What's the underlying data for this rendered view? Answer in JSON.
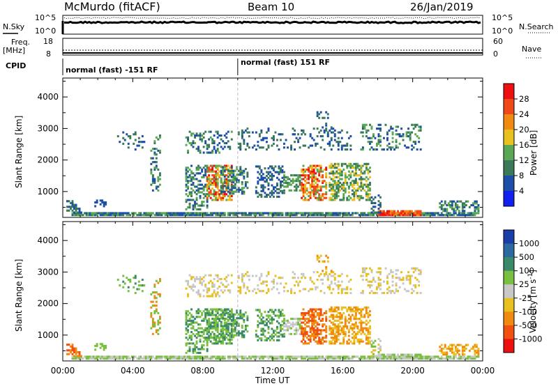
{
  "header": {
    "station": "McMurdo (fitACF)",
    "beam": "Beam 10",
    "date": "26/Jan/2019"
  },
  "top_panels": {
    "nsky_label": "N.Sky",
    "nsky_ticks": [
      "10^5",
      "10^0"
    ],
    "nsearch_label": "N.Search",
    "nsearch_ticks": [
      "10^5",
      "10^0"
    ],
    "freq_label_1": "Freq.",
    "freq_label_2": "[MHz]",
    "freq_ticks": [
      "18",
      "8"
    ],
    "nave_label": "Nave",
    "nave_ticks": [
      "60",
      "0"
    ],
    "cpid_label": "CPID",
    "cpid_segments": [
      {
        "label": "normal (fast) -151 RF",
        "start": 0,
        "end": 10
      },
      {
        "label": "normal (fast) 151 RF",
        "start": 10,
        "end": 24
      }
    ]
  },
  "colors": {
    "power": [
      "#1020ee",
      "#1e4fa8",
      "#3a7a5a",
      "#5aa855",
      "#e8c020",
      "#f08a10",
      "#f04818",
      "#ee1010"
    ],
    "velocity": [
      "#1a3ea8",
      "#2a6aa0",
      "#3a8a6a",
      "#7ac040",
      "#c8c8c8",
      "#e8c020",
      "#f08a10",
      "#f05010",
      "#ee1010"
    ]
  },
  "chart_data": [
    {
      "type": "heatmap",
      "title": "",
      "xlabel": "Time UT",
      "ylabel": "Slant Range [km]",
      "x_ticks": [
        "00:00",
        "04:00",
        "08:00",
        "12:00",
        "16:00",
        "20:00",
        "00:00"
      ],
      "y_ticks": [
        "1000",
        "2000",
        "3000",
        "4000"
      ],
      "ylim": [
        180,
        4600
      ],
      "xlim_hours": [
        0,
        24
      ],
      "colorbar_label": "Power [dB]",
      "colorbar_ticks": [
        "4",
        "8",
        "12",
        "16",
        "20",
        "24",
        "28"
      ],
      "colorbar_range": [
        0,
        32
      ]
    },
    {
      "type": "heatmap",
      "title": "",
      "xlabel": "Time UT",
      "ylabel": "Slant Range [km]",
      "x_ticks": [
        "00:00",
        "04:00",
        "08:00",
        "12:00",
        "16:00",
        "20:00",
        "00:00"
      ],
      "y_ticks": [
        "1000",
        "2000",
        "3000",
        "4000"
      ],
      "ylim": [
        180,
        4600
      ],
      "xlim_hours": [
        0,
        24
      ],
      "colorbar_label": "Velocity [m s^-1]",
      "colorbar_ticks": [
        "1000",
        "500",
        "100",
        "25",
        "-25",
        "-100",
        "-500",
        "-1000"
      ]
    }
  ]
}
